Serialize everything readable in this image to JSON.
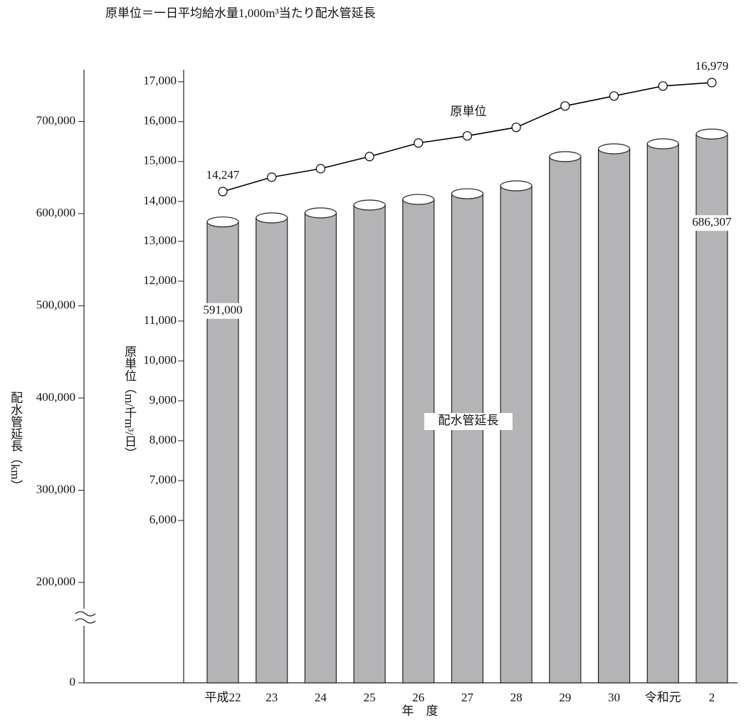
{
  "chart_data": {
    "type": "bar",
    "subtitle": "原単位＝一日平均給水量1,000m³当たり配水管延長",
    "x_title": "年　度",
    "ylabel": "配水管延長（km）",
    "y2label": "原単位（m/千m³/日）",
    "categories": [
      "平成22",
      "23",
      "24",
      "25",
      "26",
      "27",
      "28",
      "29",
      "30",
      "令和元",
      "2"
    ],
    "series": [
      {
        "name": "配水管延長",
        "type": "bar",
        "color": "#b4b4b6",
        "values": [
          591000,
          595400,
          600800,
          609300,
          615400,
          621600,
          630100,
          661800,
          670300,
          675700,
          686307
        ],
        "value_labels": [
          "591,000",
          null,
          null,
          null,
          null,
          null,
          null,
          null,
          null,
          null,
          "686,307"
        ]
      },
      {
        "name": "原単位",
        "type": "line",
        "axis": "y2",
        "color": "#000000",
        "values": [
          14247,
          14607,
          14821,
          15125,
          15464,
          15643,
          15857,
          16393,
          16643,
          16893,
          16979
        ],
        "value_labels": [
          "14,247",
          null,
          null,
          null,
          null,
          null,
          null,
          null,
          null,
          null,
          "16,979"
        ]
      }
    ],
    "ylim": [
      0,
      756000
    ],
    "yticks": [
      0,
      {
        "value": 200000,
        "label": "200,000"
      },
      {
        "value": 300000,
        "label": "300,000"
      },
      {
        "value": 400000,
        "label": "400,000"
      },
      {
        "value": 500000,
        "label": "500,000"
      },
      {
        "value": 600000,
        "label": "600,000"
      },
      {
        "value": 700000,
        "label": "700,000"
      }
    ],
    "axis_break": true,
    "y2lim": [
      1930,
      17300
    ],
    "y2ticks": [
      {
        "value": 6000,
        "label": "6,000"
      },
      {
        "value": 7000,
        "label": "7,000"
      },
      {
        "value": 8000,
        "label": "8,000"
      },
      {
        "value": 9000,
        "label": "9,000"
      },
      {
        "value": 10000,
        "label": "10,000"
      },
      {
        "value": 11000,
        "label": "11,000"
      },
      {
        "value": 12000,
        "label": "12,000"
      },
      {
        "value": 13000,
        "label": "13,000"
      },
      {
        "value": 14000,
        "label": "14,000"
      },
      {
        "value": 15000,
        "label": "15,000"
      },
      {
        "value": 16000,
        "label": "16,000"
      },
      {
        "value": 17000,
        "label": "17,000"
      }
    ]
  }
}
